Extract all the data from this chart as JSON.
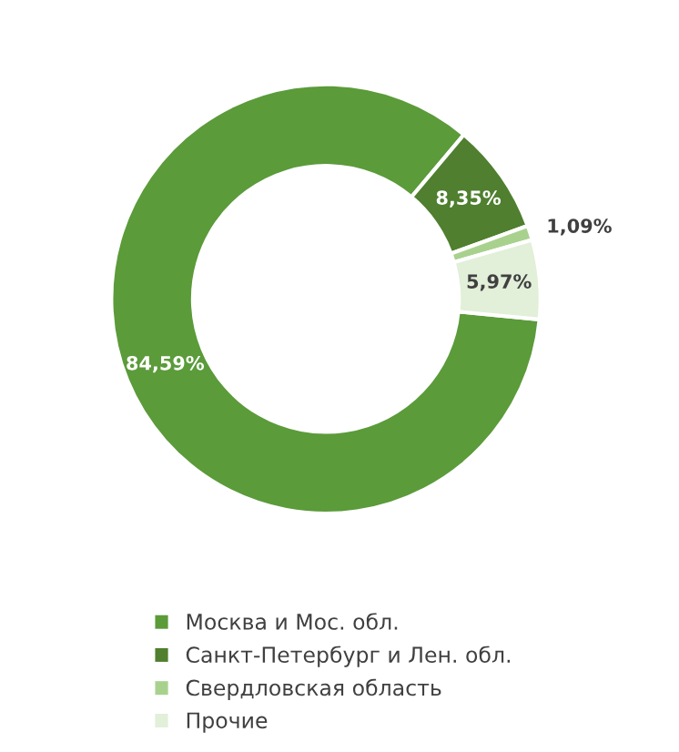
{
  "chart_data": {
    "type": "donut",
    "categories": [
      "Москва и Мос. обл.",
      "Санкт-Петербург и Лен. обл.",
      "Свердловская область",
      "Прочие"
    ],
    "values": [
      84.59,
      8.35,
      1.09,
      5.97
    ],
    "colors": [
      "#5b9b3a",
      "#4f7f2f",
      "#a9d18e",
      "#e2efd9"
    ],
    "value_labels": [
      "84,59%",
      "8,35%",
      "1,09%",
      "5,97%"
    ],
    "legend": "bottom"
  }
}
